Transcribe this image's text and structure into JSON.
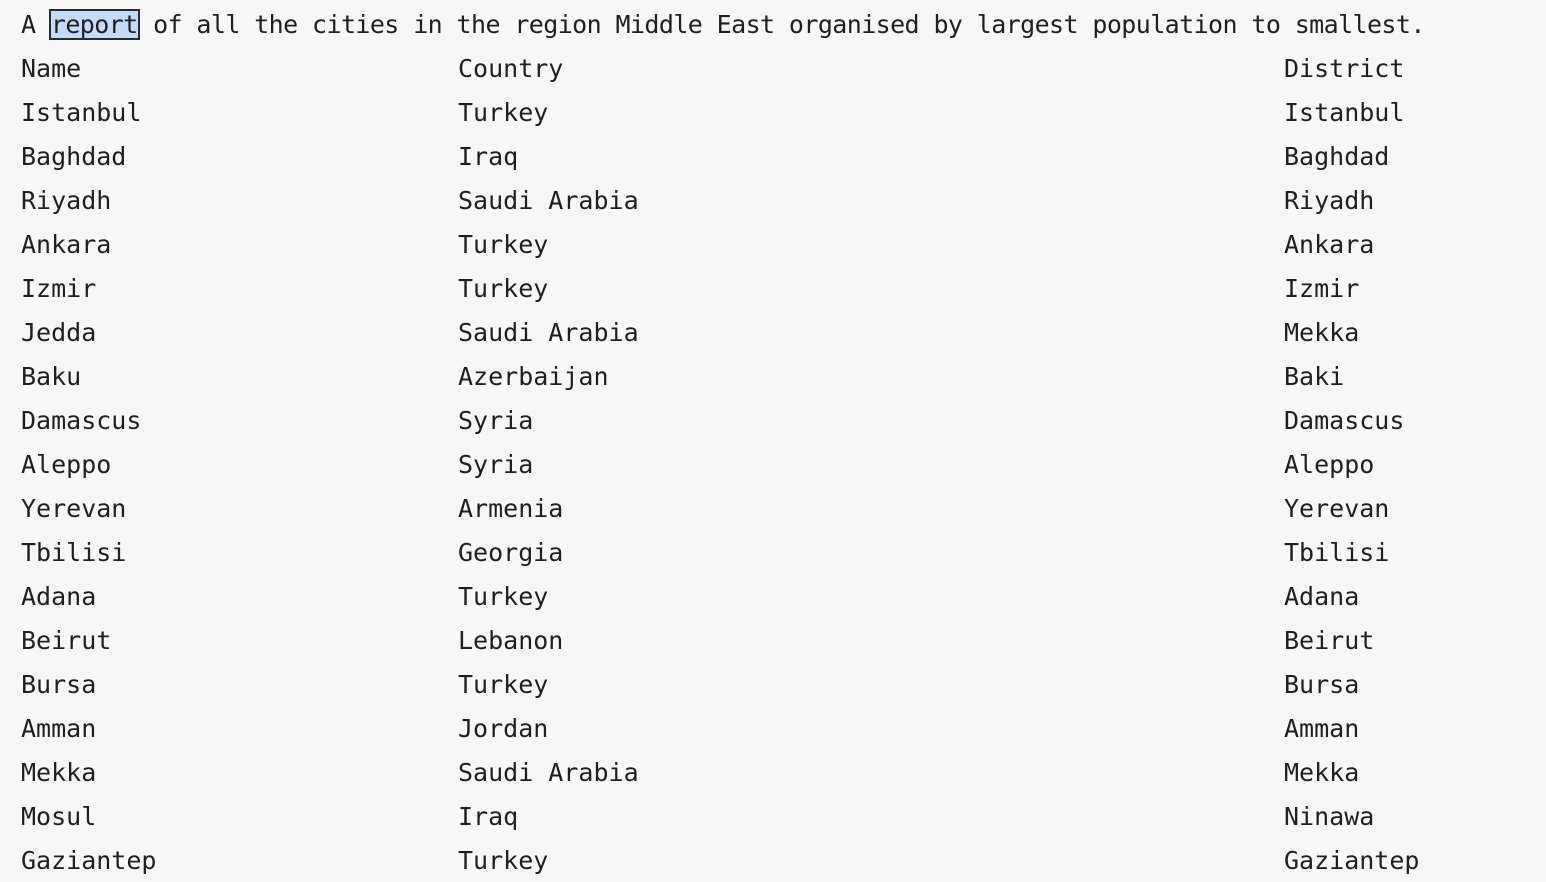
{
  "title": {
    "before": "A ",
    "highlighted": "report",
    "after": " of all the cities in the region Middle East organised by largest population to smallest."
  },
  "table": {
    "headers": {
      "name": "Name",
      "country": "Country",
      "district": "District"
    },
    "rows": [
      {
        "name": "Istanbul",
        "country": "Turkey",
        "district": "Istanbul"
      },
      {
        "name": "Baghdad",
        "country": "Iraq",
        "district": "Baghdad"
      },
      {
        "name": "Riyadh",
        "country": "Saudi Arabia",
        "district": "Riyadh"
      },
      {
        "name": "Ankara",
        "country": "Turkey",
        "district": "Ankara"
      },
      {
        "name": "Izmir",
        "country": "Turkey",
        "district": "Izmir"
      },
      {
        "name": "Jedda",
        "country": "Saudi Arabia",
        "district": "Mekka"
      },
      {
        "name": "Baku",
        "country": "Azerbaijan",
        "district": "Baki"
      },
      {
        "name": "Damascus",
        "country": "Syria",
        "district": "Damascus"
      },
      {
        "name": "Aleppo",
        "country": "Syria",
        "district": "Aleppo"
      },
      {
        "name": "Yerevan",
        "country": "Armenia",
        "district": "Yerevan"
      },
      {
        "name": "Tbilisi",
        "country": "Georgia",
        "district": "Tbilisi"
      },
      {
        "name": "Adana",
        "country": "Turkey",
        "district": "Adana"
      },
      {
        "name": "Beirut",
        "country": "Lebanon",
        "district": "Beirut"
      },
      {
        "name": "Bursa",
        "country": "Turkey",
        "district": "Bursa"
      },
      {
        "name": "Amman",
        "country": "Jordan",
        "district": "Amman"
      },
      {
        "name": "Mekka",
        "country": "Saudi Arabia",
        "district": "Mekka"
      },
      {
        "name": "Mosul",
        "country": "Iraq",
        "district": "Ninawa"
      },
      {
        "name": "Gaziantep",
        "country": "Turkey",
        "district": "Gaziantep"
      }
    ]
  },
  "colors": {
    "background": "#f7f7f7",
    "text": "#1f1f1f",
    "highlight": "#c4dcf8"
  }
}
